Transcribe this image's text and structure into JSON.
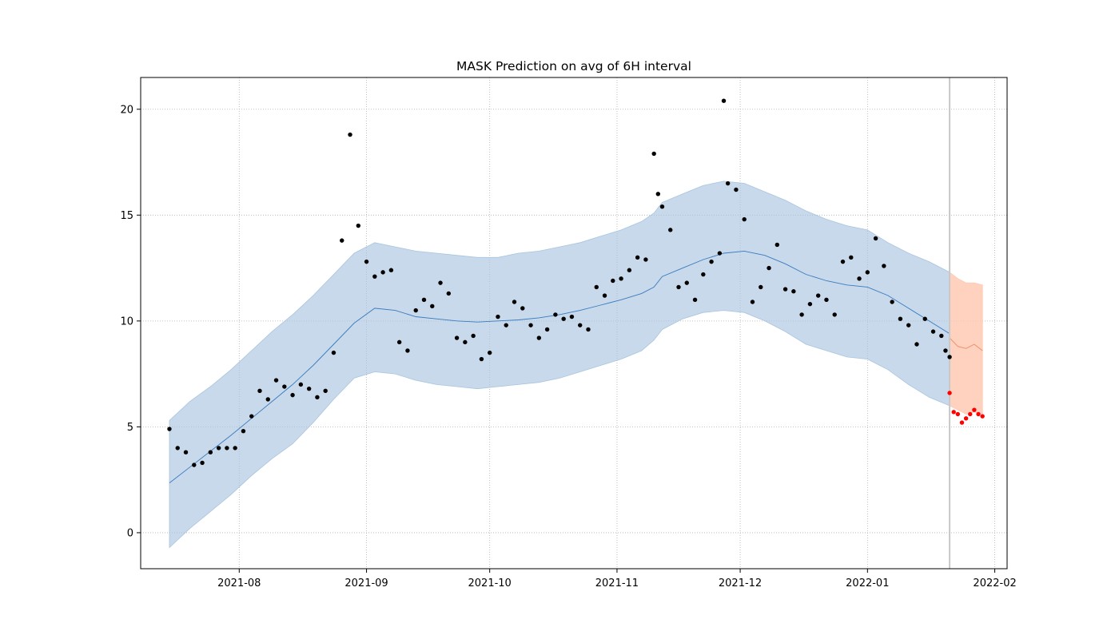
{
  "chart_data": {
    "type": "scatter",
    "title": "MASK Prediction on avg of 6H interval",
    "xlabel": "",
    "ylabel": "",
    "x_ticks": [
      "2021-08",
      "2021-09",
      "2021-10",
      "2021-11",
      "2021-12",
      "2022-01",
      "2022-02"
    ],
    "y_ticks": [
      "0",
      "5",
      "10",
      "15",
      "20"
    ],
    "xlim": [
      "2021-07-08",
      "2022-02-04"
    ],
    "ylim": [
      -1.7,
      21.5
    ],
    "grid": true,
    "train_end": "2022-01-21",
    "colors": {
      "observed": "#000000",
      "actual_future": "#ff0000",
      "forecast_line": "#3a7bbf",
      "forecast_band": "#a9c4df",
      "future_line": "#f08a5d",
      "future_band": "#ffc7b0",
      "divider": "#c8c8c8"
    },
    "series": [
      {
        "role": "forecast",
        "x": [
          "2021-07-15",
          "2021-07-20",
          "2021-07-25",
          "2021-07-30",
          "2021-08-04",
          "2021-08-09",
          "2021-08-14",
          "2021-08-19",
          "2021-08-24",
          "2021-08-29",
          "2021-09-03",
          "2021-09-08",
          "2021-09-13",
          "2021-09-18",
          "2021-09-23",
          "2021-09-28",
          "2021-10-03",
          "2021-10-08",
          "2021-10-13",
          "2021-10-18",
          "2021-10-23",
          "2021-10-28",
          "2021-11-02",
          "2021-11-07",
          "2021-11-10",
          "2021-11-12",
          "2021-11-17",
          "2021-11-22",
          "2021-11-27",
          "2021-12-02",
          "2021-12-07",
          "2021-12-12",
          "2021-12-17",
          "2021-12-22",
          "2021-12-27",
          "2022-01-01",
          "2022-01-06",
          "2022-01-11",
          "2022-01-16",
          "2022-01-21"
        ],
        "yhat": [
          2.35,
          3.1,
          3.85,
          4.6,
          5.4,
          6.2,
          7.0,
          7.9,
          8.9,
          9.9,
          10.6,
          10.5,
          10.2,
          10.1,
          10.0,
          9.95,
          10.0,
          10.05,
          10.15,
          10.3,
          10.5,
          10.75,
          11.0,
          11.3,
          11.6,
          12.1,
          12.5,
          12.9,
          13.2,
          13.3,
          13.1,
          12.7,
          12.2,
          11.9,
          11.7,
          11.6,
          11.2,
          10.6,
          10.0,
          9.4
        ],
        "lower": [
          -0.7,
          0.2,
          1.0,
          1.8,
          2.7,
          3.5,
          4.2,
          5.2,
          6.3,
          7.3,
          7.6,
          7.5,
          7.2,
          7.0,
          6.9,
          6.8,
          6.9,
          7.0,
          7.1,
          7.3,
          7.6,
          7.9,
          8.2,
          8.6,
          9.1,
          9.6,
          10.1,
          10.4,
          10.5,
          10.4,
          10.0,
          9.5,
          8.9,
          8.6,
          8.3,
          8.2,
          7.7,
          7.0,
          6.4,
          6.0
        ],
        "upper": [
          5.3,
          6.2,
          6.9,
          7.7,
          8.6,
          9.5,
          10.3,
          11.2,
          12.2,
          13.2,
          13.7,
          13.5,
          13.3,
          13.2,
          13.1,
          13.0,
          13.0,
          13.2,
          13.3,
          13.5,
          13.7,
          14.0,
          14.3,
          14.7,
          15.1,
          15.6,
          16.0,
          16.4,
          16.6,
          16.5,
          16.1,
          15.7,
          15.2,
          14.8,
          14.5,
          14.3,
          13.7,
          13.2,
          12.8,
          12.3
        ]
      },
      {
        "role": "future_forecast",
        "x": [
          "2022-01-21",
          "2022-01-23",
          "2022-01-25",
          "2022-01-27",
          "2022-01-29"
        ],
        "yhat": [
          9.2,
          8.8,
          8.7,
          8.9,
          8.6
        ],
        "lower": [
          6.0,
          5.8,
          5.6,
          5.7,
          5.6
        ],
        "upper": [
          12.3,
          12.0,
          11.8,
          11.8,
          11.7
        ]
      },
      {
        "role": "observed",
        "x": [
          "2021-07-15",
          "2021-07-17",
          "2021-07-19",
          "2021-07-21",
          "2021-07-23",
          "2021-07-25",
          "2021-07-27",
          "2021-07-29",
          "2021-07-31",
          "2021-08-02",
          "2021-08-04",
          "2021-08-06",
          "2021-08-08",
          "2021-08-10",
          "2021-08-12",
          "2021-08-14",
          "2021-08-16",
          "2021-08-18",
          "2021-08-20",
          "2021-08-22",
          "2021-08-24",
          "2021-08-26",
          "2021-08-28",
          "2021-08-30",
          "2021-09-01",
          "2021-09-03",
          "2021-09-05",
          "2021-09-07",
          "2021-09-09",
          "2021-09-11",
          "2021-09-13",
          "2021-09-15",
          "2021-09-17",
          "2021-09-19",
          "2021-09-21",
          "2021-09-23",
          "2021-09-25",
          "2021-09-27",
          "2021-09-29",
          "2021-10-01",
          "2021-10-03",
          "2021-10-05",
          "2021-10-07",
          "2021-10-09",
          "2021-10-11",
          "2021-10-13",
          "2021-10-15",
          "2021-10-17",
          "2021-10-19",
          "2021-10-21",
          "2021-10-23",
          "2021-10-25",
          "2021-10-27",
          "2021-10-29",
          "2021-10-31",
          "2021-11-02",
          "2021-11-04",
          "2021-11-06",
          "2021-11-08",
          "2021-11-10",
          "2021-11-11",
          "2021-11-12",
          "2021-11-14",
          "2021-11-16",
          "2021-11-18",
          "2021-11-20",
          "2021-11-22",
          "2021-11-24",
          "2021-11-26",
          "2021-11-27",
          "2021-11-28",
          "2021-11-30",
          "2021-12-02",
          "2021-12-04",
          "2021-12-06",
          "2021-12-08",
          "2021-12-10",
          "2021-12-12",
          "2021-12-14",
          "2021-12-16",
          "2021-12-18",
          "2021-12-20",
          "2021-12-22",
          "2021-12-24",
          "2021-12-26",
          "2021-12-28",
          "2021-12-30",
          "2022-01-01",
          "2022-01-03",
          "2022-01-05",
          "2022-01-07",
          "2022-01-09",
          "2022-01-11",
          "2022-01-13",
          "2022-01-15",
          "2022-01-17",
          "2022-01-19",
          "2022-01-20",
          "2022-01-21"
        ],
        "y": [
          4.9,
          4.0,
          3.8,
          3.2,
          3.3,
          3.8,
          4.0,
          4.0,
          4.0,
          4.8,
          5.5,
          6.7,
          6.3,
          7.2,
          6.9,
          6.5,
          7.0,
          6.8,
          6.4,
          6.7,
          8.5,
          13.8,
          18.8,
          14.5,
          12.8,
          12.1,
          12.3,
          12.4,
          9.0,
          8.6,
          10.5,
          11.0,
          10.7,
          11.8,
          11.3,
          9.2,
          9.0,
          9.3,
          8.2,
          8.5,
          10.2,
          9.8,
          10.9,
          10.6,
          9.8,
          9.2,
          9.6,
          10.3,
          10.1,
          10.2,
          9.8,
          9.6,
          11.6,
          11.2,
          11.9,
          12.0,
          12.4,
          13.0,
          12.9,
          17.9,
          16.0,
          15.4,
          14.3,
          11.6,
          11.8,
          11.0,
          12.2,
          12.8,
          13.2,
          20.4,
          16.5,
          16.2,
          14.8,
          10.9,
          11.6,
          12.5,
          13.6,
          11.5,
          11.4,
          10.3,
          10.8,
          11.2,
          11.0,
          10.3,
          12.8,
          13.0,
          12.0,
          12.3,
          13.9,
          12.6,
          10.9,
          10.1,
          9.8,
          8.9,
          10.1,
          9.5,
          9.3,
          8.6,
          8.3
        ]
      },
      {
        "role": "actual_future",
        "x": [
          "2022-01-21",
          "2022-01-22",
          "2022-01-23",
          "2022-01-24",
          "2022-01-25",
          "2022-01-26",
          "2022-01-27",
          "2022-01-28",
          "2022-01-29"
        ],
        "y": [
          6.6,
          5.7,
          5.6,
          5.2,
          5.4,
          5.6,
          5.8,
          5.6,
          5.5
        ]
      }
    ]
  }
}
